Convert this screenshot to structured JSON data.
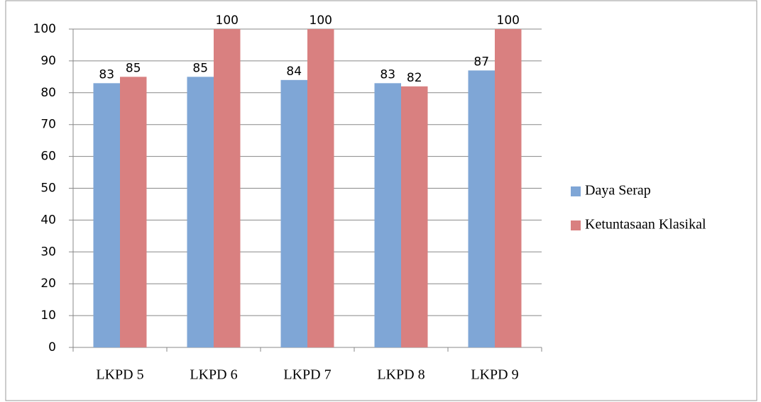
{
  "chart_data": {
    "type": "bar",
    "categories": [
      "LKPD 5",
      "LKPD 6",
      "LKPD 7",
      "LKPD 8",
      "LKPD 9"
    ],
    "series": [
      {
        "name": "Daya Serap",
        "color": "#7fa6d6",
        "values": [
          83,
          85,
          84,
          83,
          87
        ]
      },
      {
        "name": "Ketuntasaan Klasikal",
        "color": "#d98080",
        "values": [
          85,
          100,
          100,
          82,
          100
        ]
      }
    ],
    "ylim": [
      0,
      100
    ],
    "yticks": [
      0,
      10,
      20,
      30,
      40,
      50,
      60,
      70,
      80,
      90,
      100
    ],
    "grid": true,
    "legend": "right"
  }
}
